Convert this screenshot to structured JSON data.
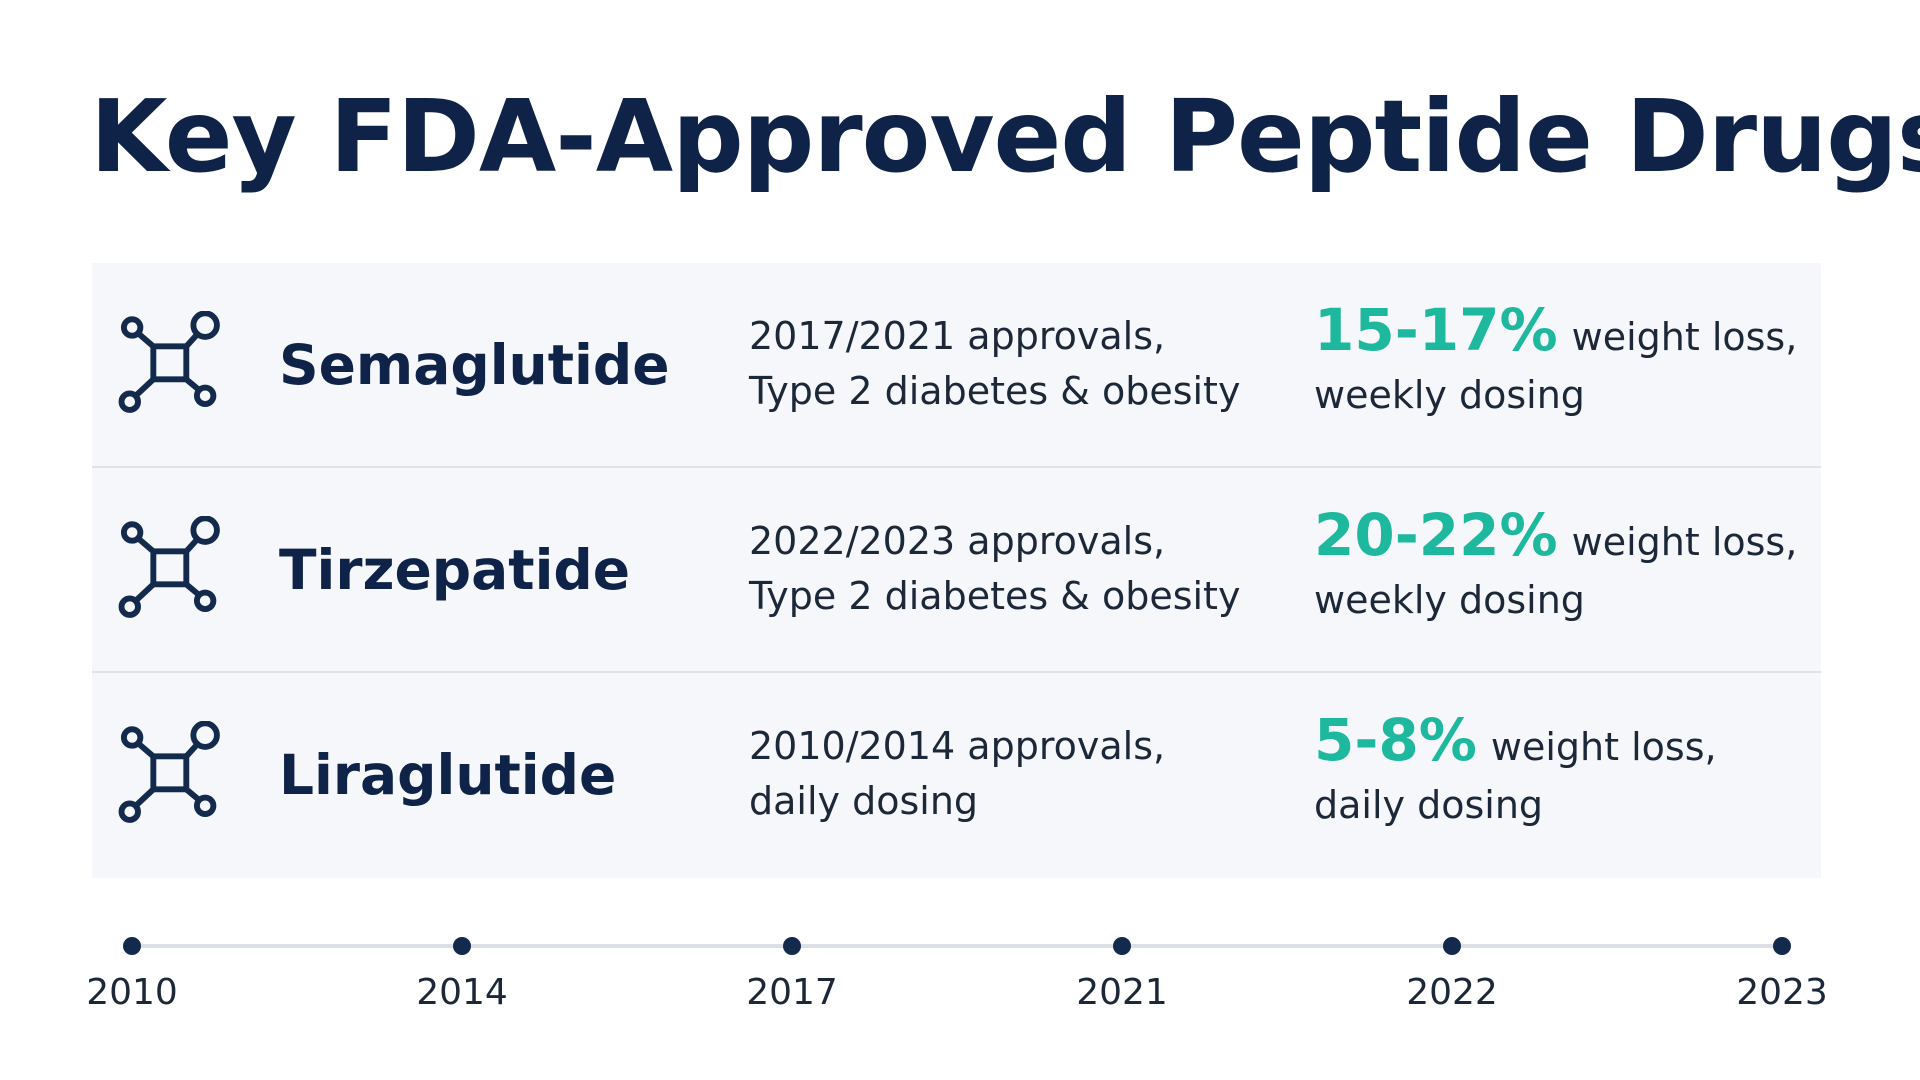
{
  "title": "Key FDA-Approved Peptide Drugs",
  "rows": [
    {
      "name": "Semaglutide",
      "approval": [
        "2017/2021 approvals,",
        "Type 2 diabetes & obesity"
      ],
      "highlight": "15-17%",
      "effect": [
        "weight loss,",
        "weekly dosing"
      ]
    },
    {
      "name": "Tirzepatide",
      "approval": [
        "2022/2023 approvals,",
        "Type 2 diabetes & obesity"
      ],
      "highlight": "20-22%",
      "effect": [
        "weight loss,",
        "weekly dosing"
      ]
    },
    {
      "name": "Liraglutide",
      "approval": [
        "2010/2014 approvals,",
        "daily dosing"
      ],
      "highlight": "5-8%",
      "effect": [
        "weight loss,",
        "daily dosing"
      ]
    }
  ],
  "timeline": [
    "2010",
    "2014",
    "2017",
    "2021",
    "2022",
    "2023"
  ]
}
